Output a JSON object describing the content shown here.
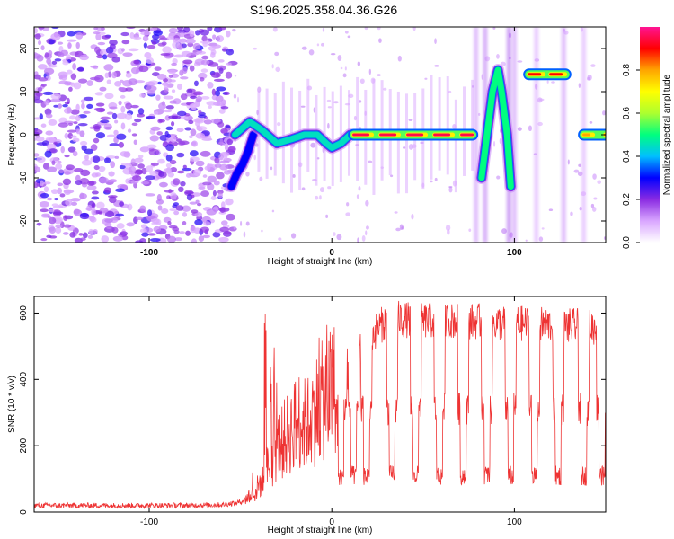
{
  "title": "S196.2025.358.04.36.G26",
  "chart_data": [
    {
      "type": "heatmap",
      "xlabel": "Height of straight line (km)",
      "ylabel": "Frequency (Hz)",
      "xlim": [
        -163,
        150
      ],
      "ylim": [
        -25,
        25
      ],
      "xticks": [
        -100,
        0,
        100
      ],
      "yticks": [
        -20,
        -10,
        0,
        10,
        20
      ],
      "colorbar": {
        "label": "Normalized spectral amplitude",
        "range": [
          0,
          1
        ],
        "ticks": [
          "0.0",
          "0.2",
          "0.4",
          "0.6",
          "0.8"
        ],
        "tick_values": [
          0,
          0.2,
          0.4,
          0.6,
          0.8
        ],
        "colors": [
          "#ffffff",
          "#d9a6ff",
          "#8a2be2",
          "#0000ff",
          "#00bfff",
          "#00ff7f",
          "#adff2f",
          "#ffff00",
          "#ffa500",
          "#ff0000",
          "#ff1493"
        ]
      },
      "features": [
        {
          "name": "noise region",
          "x_range": [
            -163,
            -60
          ],
          "freq_range": [
            -25,
            25
          ],
          "amplitude": 0.1
        },
        {
          "name": "rising onset",
          "x": [
            -55,
            -52,
            -49,
            -46,
            -43
          ],
          "freq": [
            -12,
            -9,
            -7,
            -4,
            0
          ],
          "amplitude": 0.3
        },
        {
          "name": "carrier track",
          "x": [
            -53,
            -45,
            -38,
            -30,
            -22,
            -15,
            -8,
            -3,
            0,
            5,
            10
          ],
          "freq": [
            0,
            3,
            1,
            -2,
            -1,
            0,
            0,
            -2,
            -3,
            -2,
            0
          ],
          "amplitude": 0.45
        },
        {
          "name": "strong carrier",
          "x": [
            12,
            22,
            30,
            40,
            50,
            60,
            70,
            77
          ],
          "freq": [
            0,
            0,
            0,
            0,
            0,
            0,
            0,
            0
          ],
          "amplitude": 0.95
        },
        {
          "name": "arc",
          "x": [
            82,
            85,
            88,
            91,
            93,
            96,
            98
          ],
          "freq": [
            -10,
            0,
            10,
            15,
            10,
            0,
            -12
          ],
          "amplitude": 0.5
        },
        {
          "name": "high line",
          "x": [
            108,
            113,
            118,
            123,
            128
          ],
          "freq": [
            14,
            14,
            14,
            14,
            14
          ],
          "amplitude": 0.9
        },
        {
          "name": "right segment",
          "x": [
            138,
            142,
            146,
            150
          ],
          "freq": [
            0,
            0,
            0,
            1
          ],
          "amplitude": 0.8
        }
      ]
    },
    {
      "type": "line",
      "xlabel": "Height of straight line (km)",
      "ylabel": "SNR (10 * v/v)",
      "xlim": [
        -163,
        150
      ],
      "ylim": [
        0,
        650
      ],
      "xticks": [
        -100,
        0,
        100
      ],
      "yticks": [
        0,
        200,
        400,
        600
      ],
      "series": [
        {
          "name": "SNR",
          "color": "#ee3333",
          "x": [
            -163,
            -140,
            -120,
            -100,
            -80,
            -60,
            -50,
            -42,
            -38,
            -34,
            -30,
            -26,
            -22,
            -18,
            -14,
            -10,
            -6,
            -2,
            2,
            6,
            10,
            14,
            18,
            22,
            26,
            30,
            34,
            40,
            50,
            60,
            70,
            80,
            90,
            100,
            110,
            120,
            130,
            140,
            150
          ],
          "values": [
            20,
            20,
            20,
            20,
            20,
            22,
            30,
            60,
            100,
            150,
            190,
            220,
            250,
            280,
            260,
            300,
            330,
            350,
            380,
            400,
            430,
            470,
            500,
            530,
            560,
            575,
            585,
            580,
            575,
            580,
            575,
            575,
            570,
            570,
            565,
            565,
            560,
            560,
            550
          ],
          "dropouts": [
            5,
            12,
            19,
            33,
            46,
            59,
            72,
            85,
            98,
            111,
            124,
            138,
            148
          ],
          "dropout_level": 110
        }
      ]
    }
  ]
}
